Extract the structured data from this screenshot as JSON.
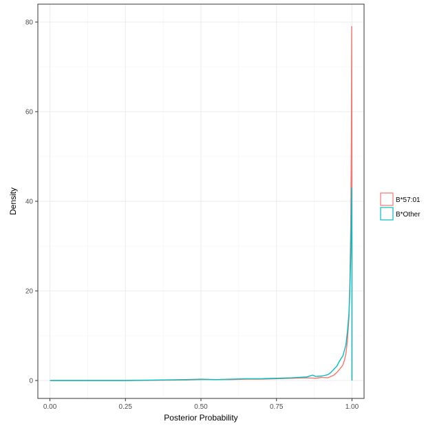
{
  "chart_data": {
    "type": "line",
    "xlabel": "Posterior Probability",
    "ylabel": "Density",
    "xlim": [
      -0.04,
      1.04
    ],
    "ylim": [
      -4,
      84
    ],
    "x_ticks": [
      0,
      0.25,
      0.5,
      0.75,
      1
    ],
    "x_tick_labels": [
      "0.00",
      "0.25",
      "0.50",
      "0.75",
      "1.00"
    ],
    "y_ticks": [
      0,
      20,
      40,
      60,
      80
    ],
    "y_tick_labels": [
      "0",
      "20",
      "40",
      "60",
      "80"
    ],
    "grid": true,
    "legend_position": "right",
    "series": [
      {
        "name": "B*57:01",
        "color": "#F8766D",
        "points": [
          [
            0,
            0
          ],
          [
            0.25,
            0
          ],
          [
            0.45,
            0.1
          ],
          [
            0.5,
            0.2
          ],
          [
            0.55,
            0.2
          ],
          [
            0.6,
            0.2
          ],
          [
            0.65,
            0.3
          ],
          [
            0.7,
            0.3
          ],
          [
            0.75,
            0.4
          ],
          [
            0.8,
            0.5
          ],
          [
            0.85,
            0.6
          ],
          [
            0.88,
            0.5
          ],
          [
            0.9,
            0.7
          ],
          [
            0.92,
            0.6
          ],
          [
            0.93,
            0.9
          ],
          [
            0.94,
            1.2
          ],
          [
            0.95,
            1.8
          ],
          [
            0.96,
            2.6
          ],
          [
            0.965,
            3.0
          ],
          [
            0.97,
            3.5
          ],
          [
            0.975,
            4.5
          ],
          [
            0.98,
            6.0
          ],
          [
            0.985,
            9.0
          ],
          [
            0.99,
            14.0
          ],
          [
            0.993,
            22.0
          ],
          [
            0.996,
            35.0
          ],
          [
            0.998,
            55.0
          ],
          [
            0.999,
            79.0
          ],
          [
            1.0,
            43.0
          ],
          [
            1.0,
            0
          ]
        ]
      },
      {
        "name": "B*Other",
        "color": "#00BFC4",
        "points": [
          [
            0,
            0
          ],
          [
            0.25,
            0
          ],
          [
            0.45,
            0.2
          ],
          [
            0.5,
            0.3
          ],
          [
            0.55,
            0.2
          ],
          [
            0.6,
            0.3
          ],
          [
            0.65,
            0.4
          ],
          [
            0.7,
            0.4
          ],
          [
            0.75,
            0.5
          ],
          [
            0.8,
            0.6
          ],
          [
            0.85,
            0.8
          ],
          [
            0.87,
            1.2
          ],
          [
            0.88,
            0.9
          ],
          [
            0.9,
            1.0
          ],
          [
            0.92,
            1.3
          ],
          [
            0.93,
            1.8
          ],
          [
            0.94,
            2.5
          ],
          [
            0.95,
            3.2
          ],
          [
            0.96,
            4.5
          ],
          [
            0.97,
            5.5
          ],
          [
            0.98,
            8.0
          ],
          [
            0.985,
            11.0
          ],
          [
            0.99,
            15.0
          ],
          [
            0.993,
            20.0
          ],
          [
            0.996,
            28.0
          ],
          [
            0.998,
            36.0
          ],
          [
            0.999,
            43.0
          ],
          [
            1.0,
            30.0
          ],
          [
            1.0,
            0
          ]
        ]
      }
    ]
  }
}
